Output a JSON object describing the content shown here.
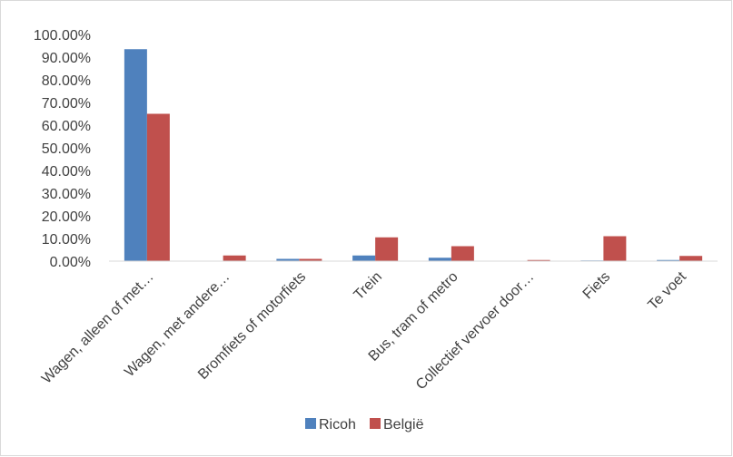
{
  "chart_data": {
    "type": "bar",
    "categories": [
      "Wagen, alleen of met…",
      "Wagen, met andere…",
      "Bromfiets of motorfiets",
      "Trein",
      "Bus, tram of metro",
      "Collectief vervoer door…",
      "Fiets",
      "Te voet"
    ],
    "series": [
      {
        "name": "Ricoh",
        "color": "#4f81bd",
        "values": [
          93.5,
          0.0,
          1.0,
          2.5,
          1.5,
          0.0,
          0.3,
          0.5
        ]
      },
      {
        "name": "België",
        "color": "#c0504d",
        "values": [
          65.0,
          2.5,
          1.0,
          10.5,
          6.6,
          0.5,
          11.0,
          2.3
        ]
      }
    ],
    "ylim": [
      0,
      100
    ],
    "yticks": [
      0,
      10,
      20,
      30,
      40,
      50,
      60,
      70,
      80,
      90,
      100
    ],
    "ytick_labels": [
      "0.00%",
      "10.00%",
      "20.00%",
      "30.00%",
      "40.00%",
      "50.00%",
      "60.00%",
      "70.00%",
      "80.00%",
      "90.00%",
      "100.00%"
    ],
    "grid": false,
    "legend_position": "bottom"
  }
}
